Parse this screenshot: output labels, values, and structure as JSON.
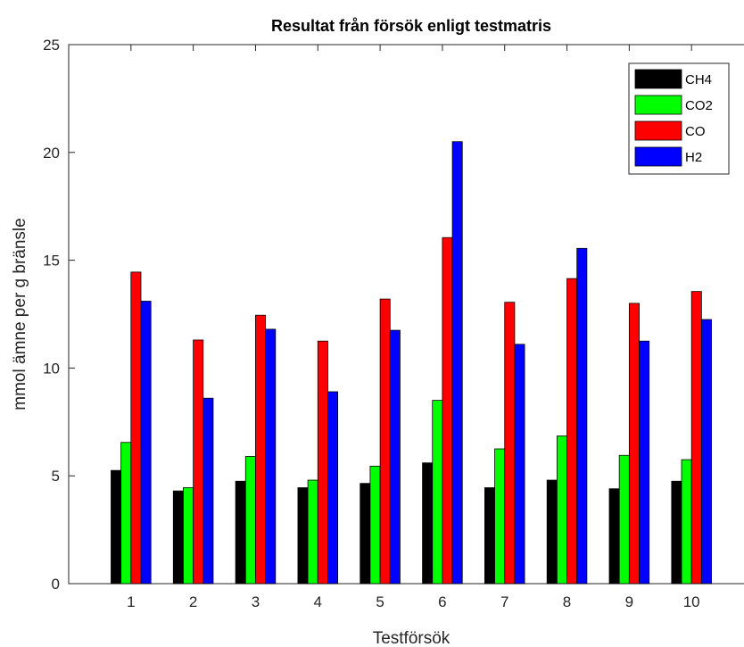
{
  "chart_data": {
    "type": "bar",
    "title": "Resultat från försök enligt testmatris",
    "xlabel": "Testförsök",
    "ylabel": "mmol ämne per g bränsle",
    "categories": [
      "1",
      "2",
      "3",
      "4",
      "5",
      "6",
      "7",
      "8",
      "9",
      "10"
    ],
    "xlim": [
      0,
      11
    ],
    "ylim": [
      0,
      25
    ],
    "yticks": [
      "0",
      "5",
      "10",
      "15",
      "20",
      "25"
    ],
    "grid": false,
    "legend": "top-right",
    "series": [
      {
        "name": "CH4",
        "color": "#000000",
        "values": [
          5.25,
          4.3,
          4.75,
          4.45,
          4.65,
          5.6,
          4.45,
          4.8,
          4.4,
          4.75
        ]
      },
      {
        "name": "CO2",
        "color": "#00ff00",
        "values": [
          6.55,
          4.45,
          5.9,
          4.8,
          5.45,
          8.5,
          6.25,
          6.85,
          5.95,
          5.75
        ]
      },
      {
        "name": "CO",
        "color": "#ff0000",
        "values": [
          14.45,
          11.3,
          12.45,
          11.25,
          13.2,
          16.05,
          13.05,
          14.15,
          13.0,
          13.55
        ]
      },
      {
        "name": "H2",
        "color": "#0000ff",
        "values": [
          13.1,
          8.6,
          11.8,
          8.9,
          11.75,
          20.5,
          11.1,
          15.55,
          11.25,
          12.25
        ]
      }
    ]
  }
}
